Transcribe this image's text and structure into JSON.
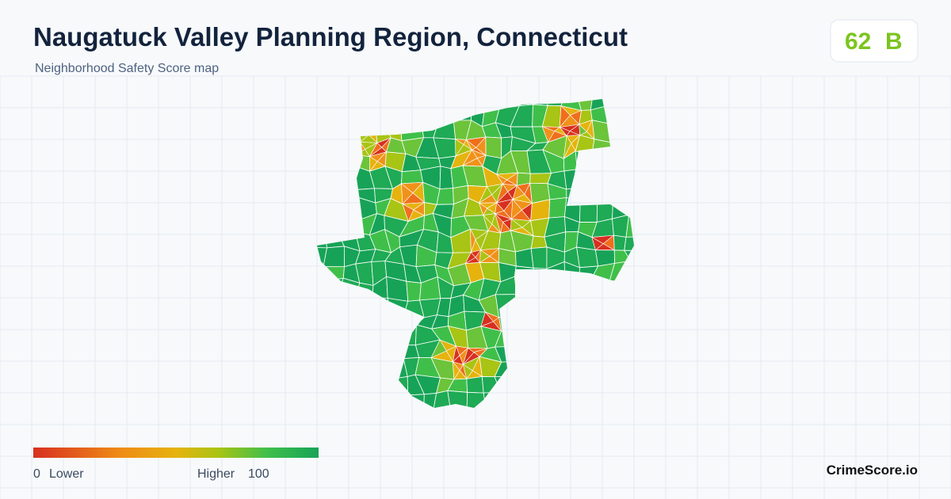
{
  "header": {
    "title": "Naugatuck Valley Planning Region, Connecticut",
    "subtitle": "Neighborhood Safety Score map"
  },
  "badge": {
    "score": 62,
    "grade": "B"
  },
  "legend": {
    "min": 0,
    "min_label": "Lower",
    "max_label": "Higher",
    "max": 100
  },
  "brand": "CrimeScore.io"
}
